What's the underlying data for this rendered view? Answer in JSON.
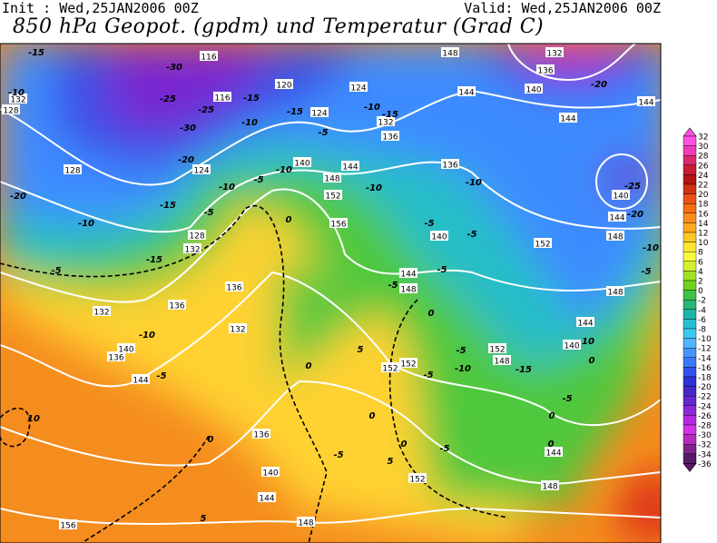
{
  "header": {
    "init": "Init : Wed,25JAN2006 00Z",
    "valid": "Valid: Wed,25JAN2006 00Z",
    "title": "850 hPa Geopot. (gpdm) und Temperatur (Grad C)"
  },
  "map": {
    "geopotential_labels": [
      116,
      116,
      120,
      124,
      124,
      128,
      132,
      128,
      124,
      128,
      132,
      136,
      136,
      132,
      136,
      132,
      140,
      148,
      152,
      156,
      144,
      136,
      140,
      144,
      148,
      152,
      152,
      152,
      148,
      144,
      148,
      152,
      144,
      140,
      148,
      144,
      140,
      144,
      148,
      136,
      132,
      140,
      144,
      144,
      132,
      136,
      140,
      144,
      136,
      140,
      144,
      148,
      156,
      152,
      148
    ],
    "temperature_labels": [
      -15,
      -30,
      -10,
      -25,
      -25,
      -30,
      -20,
      -15,
      -10,
      -15,
      -5,
      -10,
      -15,
      -10,
      -5,
      -10,
      -15,
      -5,
      -20,
      -10,
      -15,
      -5,
      -10,
      -5,
      0,
      -10,
      -5,
      -10,
      -5,
      -5,
      -5,
      0,
      5,
      0,
      -5,
      -10,
      -5,
      -15,
      10,
      0,
      -5,
      0,
      0,
      0,
      -5,
      -5,
      5,
      0,
      0,
      5,
      10,
      -20,
      -25,
      -20,
      -10,
      -5
    ]
  },
  "colorbar": {
    "labels": [
      32,
      30,
      28,
      26,
      24,
      22,
      20,
      18,
      16,
      14,
      12,
      10,
      8,
      6,
      4,
      2,
      0,
      -2,
      -4,
      -6,
      -8,
      -10,
      -12,
      -14,
      -16,
      -18,
      -20,
      -22,
      -24,
      -26,
      -28,
      -30,
      -32,
      -34,
      -36
    ],
    "colors": [
      "#ff50e6",
      "#f03cb4",
      "#dc286e",
      "#c81e32",
      "#b41414",
      "#d23214",
      "#eb5014",
      "#f56e14",
      "#fa8c1e",
      "#ffaa1e",
      "#ffc828",
      "#ffe632",
      "#fafa3c",
      "#d2f02d",
      "#a0e123",
      "#6ed21e",
      "#3cc346",
      "#28b478",
      "#1eb4aa",
      "#28bed2",
      "#3cc8f0",
      "#50b4ff",
      "#4696ff",
      "#3c78fa",
      "#3250eb",
      "#2d32d7",
      "#4628c8",
      "#6428cd",
      "#8c28d7",
      "#b428e1",
      "#d232eb",
      "#b42dbe",
      "#82238c",
      "#5a1968"
    ]
  }
}
